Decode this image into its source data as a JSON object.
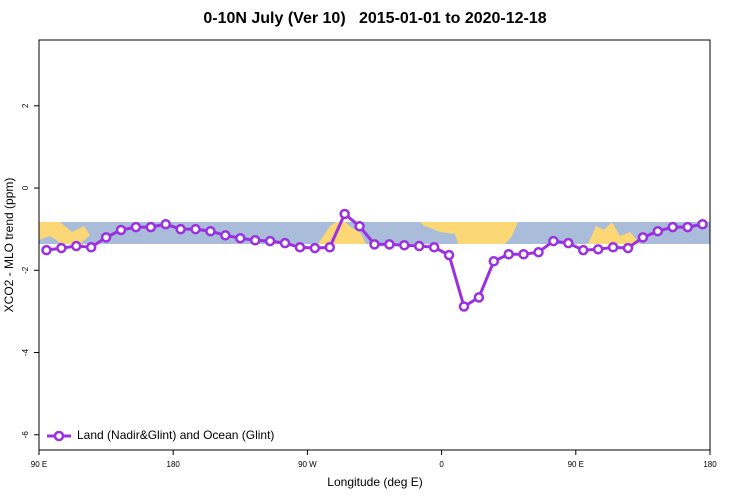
{
  "chart_data": {
    "type": "line",
    "title": "0-10N July (Ver 10)   2015-01-01 to 2020-12-18",
    "x_label": "Longitude (deg E)",
    "y_label": "XCO2 - MLO trend (ppm)",
    "x": [
      95,
      105,
      115,
      125,
      135,
      145,
      155,
      165,
      175,
      185,
      195,
      205,
      215,
      225,
      235,
      245,
      255,
      265,
      275,
      285,
      295,
      305,
      315,
      325,
      335,
      345,
      355,
      365,
      375,
      385,
      395,
      405,
      415,
      425,
      435,
      445,
      455,
      465,
      475,
      485,
      495,
      505,
      515,
      525,
      535
    ],
    "series": [
      {
        "name": "Land (Nadir&Glint) and Ocean (Glint)",
        "color": "#9b30e0",
        "values": [
          -1.51,
          -1.46,
          -1.41,
          -1.44,
          -1.2,
          -1.02,
          -0.95,
          -0.95,
          -0.88,
          -1.0,
          -1.0,
          -1.05,
          -1.15,
          -1.22,
          -1.27,
          -1.29,
          -1.34,
          -1.44,
          -1.46,
          -1.44,
          -0.63,
          -0.93,
          -1.37,
          -1.37,
          -1.39,
          -1.41,
          -1.44,
          -1.63,
          -2.88,
          -2.66,
          -1.78,
          -1.61,
          -1.61,
          -1.56,
          -1.29,
          -1.34,
          -1.51,
          -1.49,
          -1.44,
          -1.46,
          -1.2,
          -1.05,
          -0.95,
          -0.95,
          -0.88
        ]
      }
    ],
    "xlim": [
      90,
      540
    ],
    "xticks": [
      {
        "value": 90,
        "label": "90 E"
      },
      180,
      {
        "value": 270,
        "label": "90 W"
      },
      {
        "value": 360,
        "label": "0"
      },
      {
        "value": 450,
        "label": "90 E"
      },
      {
        "value": 540,
        "label": "180"
      }
    ],
    "ylim": [
      -6.37,
      3.6
    ],
    "yticks": [
      -6,
      -4,
      -2,
      0,
      2
    ],
    "legend": "bottom-left"
  }
}
